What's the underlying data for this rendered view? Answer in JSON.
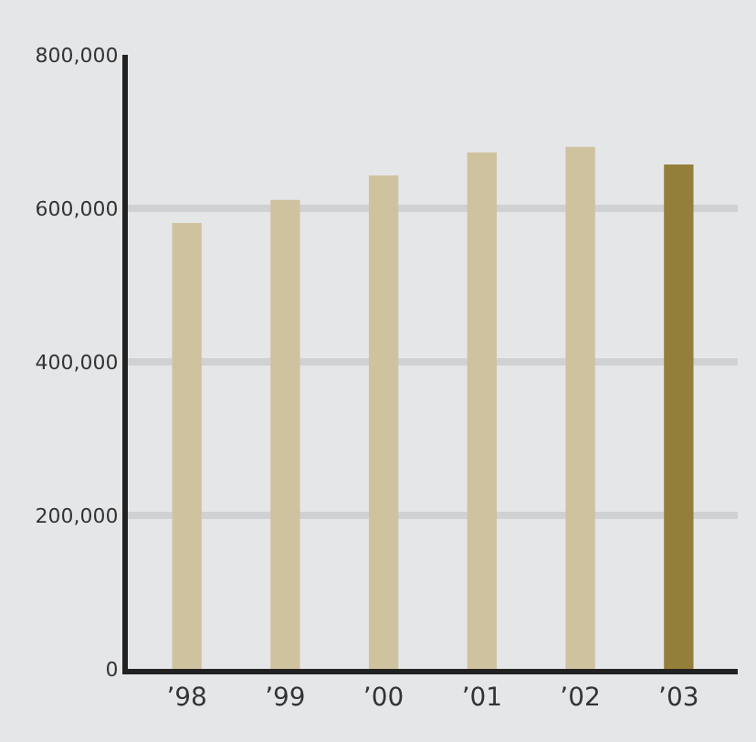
{
  "chart_data": {
    "type": "bar",
    "categories": [
      "’98",
      "’99",
      "’00",
      "’01",
      "’02",
      "’03"
    ],
    "values": [
      581000,
      611000,
      643000,
      673000,
      680000,
      657000
    ],
    "colors": [
      "#cfc29f",
      "#cfc29f",
      "#cfc29f",
      "#cfc29f",
      "#cfc29f",
      "#947f3a"
    ],
    "ylim": [
      0,
      800000
    ],
    "yticks": [
      {
        "value": 0,
        "label": "0"
      },
      {
        "value": 200000,
        "label": "200,000"
      },
      {
        "value": 400000,
        "label": "400,000"
      },
      {
        "value": 600000,
        "label": "600,000"
      },
      {
        "value": 800000,
        "label": "800,000"
      }
    ],
    "grid": "y"
  }
}
